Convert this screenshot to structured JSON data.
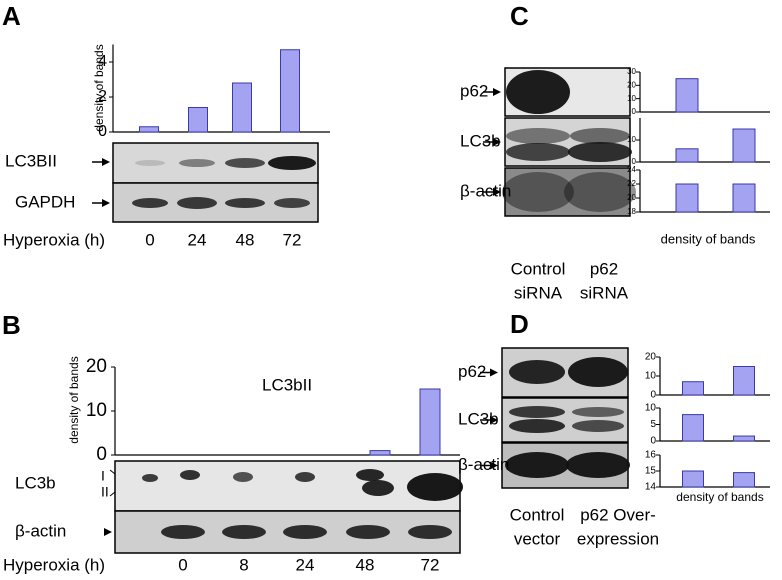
{
  "chart_data": [
    {
      "type": "bar",
      "panel": "A",
      "ylabel": "density of bands",
      "values": [
        0.3,
        1.4,
        2.8,
        4.7
      ],
      "ylim": [
        0,
        5
      ],
      "yticks": [
        0,
        2,
        4
      ],
      "color": "#a3a3f2",
      "blots": [
        {
          "label": "LC3BII"
        },
        {
          "label": "GAPDH"
        }
      ],
      "xlabel": "Hyperoxia (h)",
      "categories": [
        "0",
        "24",
        "48",
        "72"
      ]
    },
    {
      "type": "bar",
      "panel": "B",
      "title": "LC3bII",
      "ylabel": "density of bands",
      "values": [
        0,
        0,
        0,
        1,
        15
      ],
      "ylim": [
        0,
        20
      ],
      "yticks": [
        0,
        10,
        20
      ],
      "color": "#a3a3f2",
      "blots": [
        {
          "label": "LC3b",
          "bands": [
            "I",
            "II"
          ]
        },
        {
          "label": "β-actin"
        }
      ],
      "xlabel": "Hyperoxia (h)",
      "categories": [
        "0",
        "8",
        "24",
        "48",
        "72"
      ]
    },
    {
      "type": "blot-bars",
      "panel": "C",
      "color": "#a3a3f2",
      "caption": "density of bands",
      "blots": [
        {
          "label": "p62",
          "values": [
            25,
            0
          ],
          "ylim": [
            0,
            30
          ],
          "yticks": [
            0,
            10,
            20,
            30
          ]
        },
        {
          "label": "LC3b",
          "values": [
            6,
            15
          ],
          "ylim": [
            0,
            20
          ],
          "yticks": [
            0,
            10
          ]
        },
        {
          "label": "β-actin",
          "values": [
            22,
            22
          ],
          "ylim": [
            18,
            24
          ],
          "yticks": [
            18,
            20,
            22,
            24
          ]
        }
      ],
      "categories": [
        [
          "Control",
          "siRNA"
        ],
        [
          "p62",
          "siRNA"
        ]
      ]
    },
    {
      "type": "blot-bars",
      "panel": "D",
      "color": "#a3a3f2",
      "caption": "density of bands",
      "blots": [
        {
          "label": "p62",
          "values": [
            7,
            15
          ],
          "ylim": [
            0,
            20
          ],
          "yticks": [
            0,
            10,
            20
          ]
        },
        {
          "label": "LC3b",
          "values": [
            8,
            1.5
          ],
          "ylim": [
            0,
            10
          ],
          "yticks": [
            0,
            5,
            10
          ]
        },
        {
          "label": "β-actin",
          "values": [
            15,
            14.9
          ],
          "ylim": [
            14,
            16
          ],
          "yticks": [
            14,
            15,
            16
          ]
        }
      ],
      "categories": [
        [
          "Control",
          "vector"
        ],
        [
          "p62 Over-",
          "expression"
        ]
      ]
    }
  ]
}
